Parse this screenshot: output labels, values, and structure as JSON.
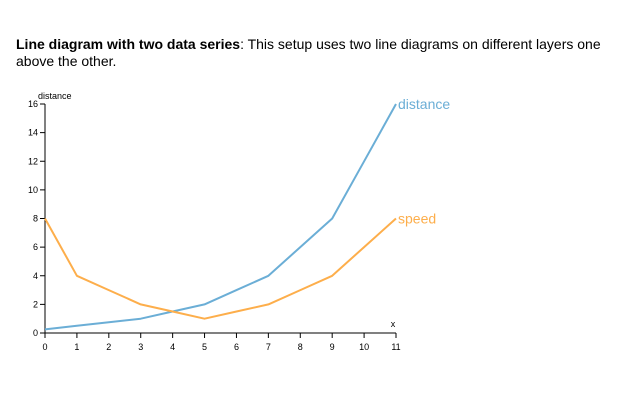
{
  "description": {
    "bold": "Line diagram with two data series",
    "rest": ": This setup uses two line diagrams on different layers one above the other."
  },
  "chart_data": {
    "type": "line",
    "x": [
      0,
      1,
      2,
      3,
      4,
      5,
      6,
      7,
      8,
      9,
      10,
      11
    ],
    "xlabel": "x",
    "ylabel": "distance",
    "xlim": [
      0,
      11
    ],
    "ylim": [
      0,
      16
    ],
    "xticks": [
      0,
      1,
      2,
      3,
      4,
      5,
      6,
      7,
      8,
      9,
      10,
      11
    ],
    "yticks": [
      0,
      2,
      4,
      6,
      8,
      10,
      12,
      14,
      16
    ],
    "grid": false,
    "series": [
      {
        "name": "distance",
        "color": "#6baed6",
        "x": [
          0,
          1,
          2,
          3,
          4,
          5,
          6,
          7,
          8,
          9,
          10,
          11
        ],
        "values": [
          0.25,
          0.5,
          0.75,
          1,
          1.5,
          2,
          3,
          4,
          6,
          8,
          12,
          16
        ]
      },
      {
        "name": "speed",
        "color": "#fdae4b",
        "x": [
          0,
          1,
          2,
          3,
          4,
          5,
          6,
          7,
          8,
          9,
          10,
          11
        ],
        "values": [
          8,
          4,
          3,
          2,
          1.5,
          1,
          1.5,
          2,
          3,
          4,
          6,
          8
        ]
      }
    ]
  }
}
